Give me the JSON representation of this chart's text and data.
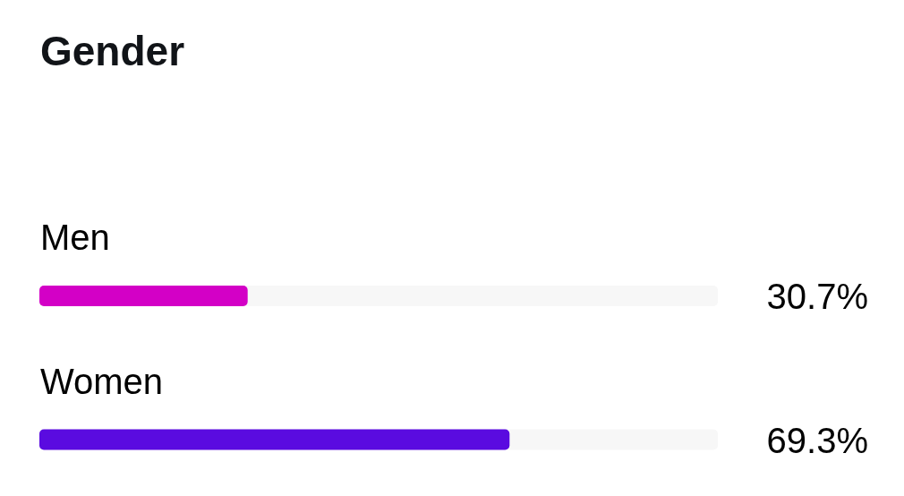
{
  "chart_data": {
    "type": "bar",
    "orientation": "horizontal",
    "title": "Gender",
    "categories": [
      "Men",
      "Women"
    ],
    "values": [
      30.7,
      69.3
    ],
    "colors": [
      "#d300c6",
      "#5a0be0"
    ],
    "value_labels": [
      "30.7%",
      "69.3%"
    ],
    "xlim": [
      0,
      100
    ],
    "tick_labels": "y"
  }
}
